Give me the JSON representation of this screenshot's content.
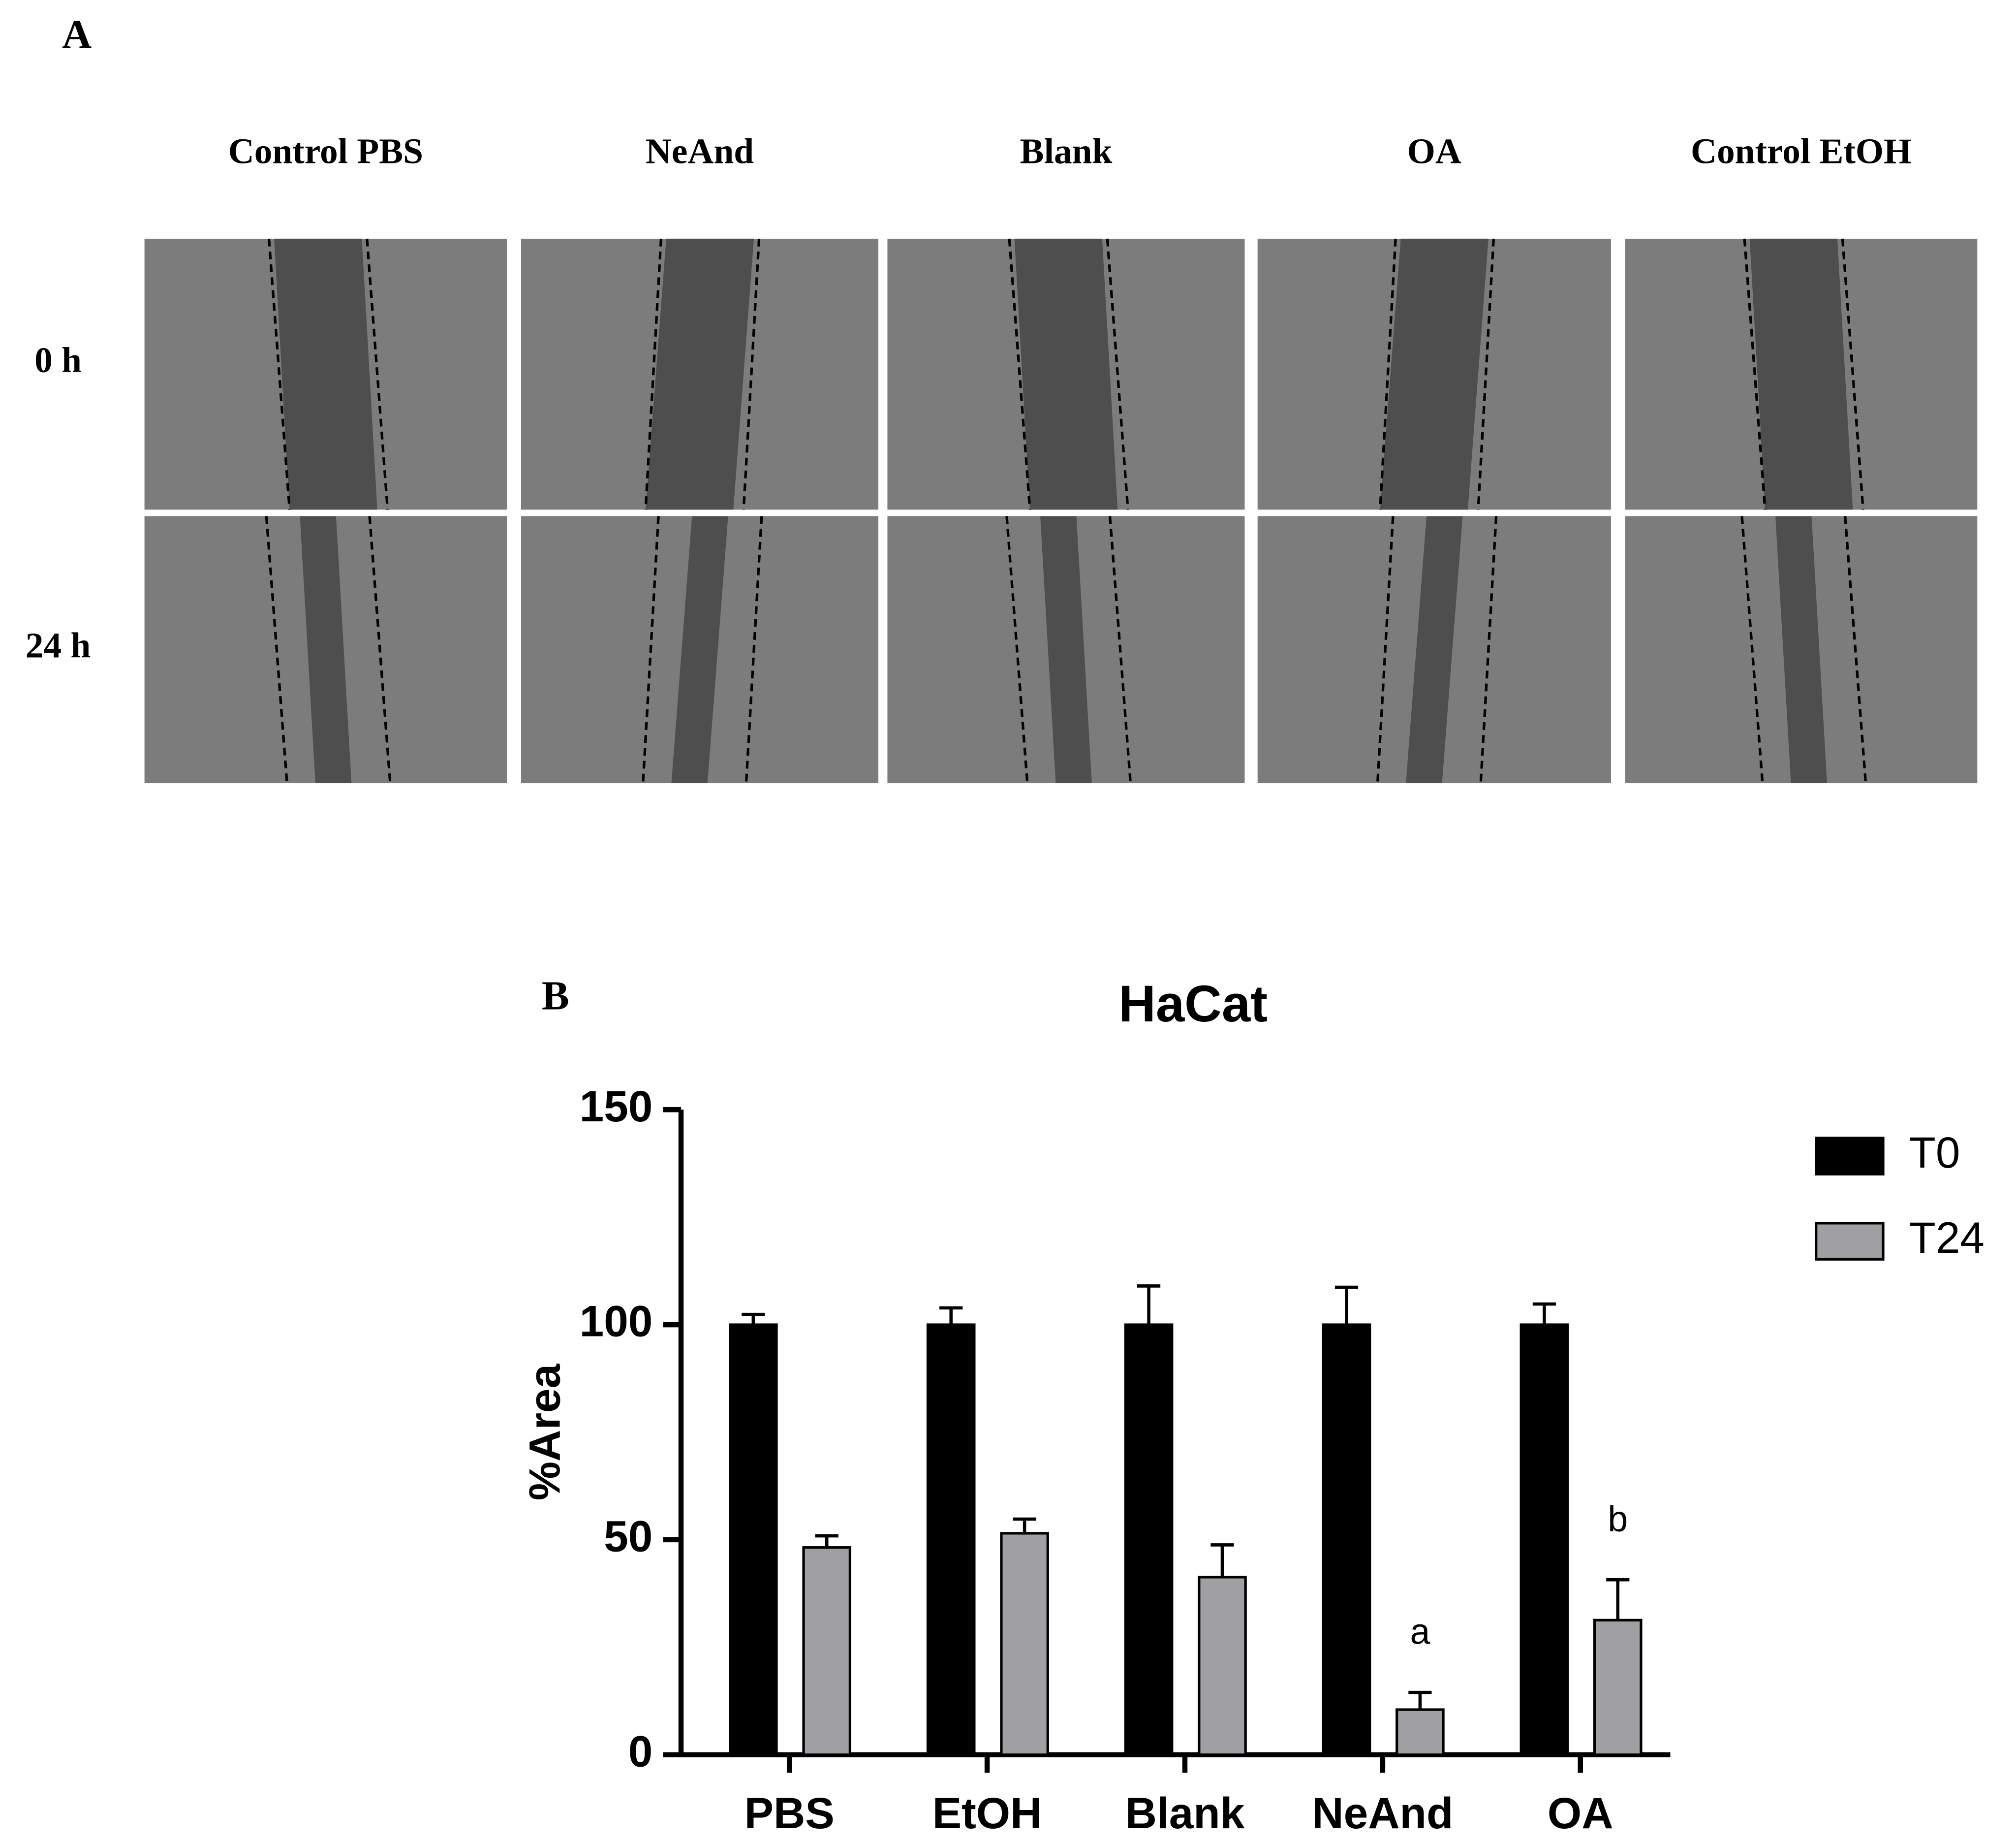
{
  "panel_a": {
    "label": "A",
    "columns": [
      "Control PBS",
      "NeAnd",
      "Blank",
      "OA",
      "Control EtOH"
    ],
    "rows": [
      "0 h",
      "24 h"
    ]
  },
  "chart_data": {
    "type": "bar",
    "panel_label": "B",
    "title": "HaCat",
    "y_label": "%Area",
    "categories": [
      "PBS",
      "EtOH",
      "Blank",
      "NeAnd",
      "OA"
    ],
    "series": [
      {
        "name": "T0",
        "color": "#000000",
        "values": [
          100,
          100,
          100,
          100,
          100
        ],
        "errors": [
          2.4,
          3.9,
          9,
          8.7,
          4.8
        ]
      },
      {
        "name": "T24",
        "color": "#a0a0a4",
        "values": [
          48.2,
          51.5,
          41.3,
          10.5,
          31.3
        ],
        "errors": [
          2.7,
          3.3,
          7.5,
          4,
          9.4
        ]
      }
    ],
    "annotations": [
      null,
      null,
      null,
      "a",
      "b"
    ],
    "ylim": [
      0,
      150
    ],
    "yticks": [
      0,
      50,
      100,
      150
    ]
  }
}
